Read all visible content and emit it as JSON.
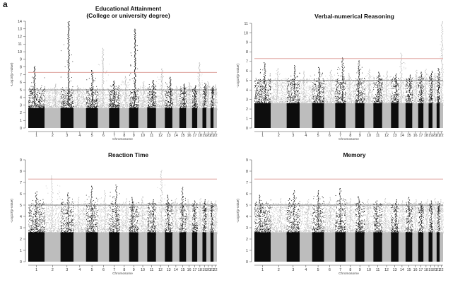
{
  "figure_label": "a",
  "colors": {
    "odd": "#0d0d0d",
    "even": "#bdbdbd",
    "suggestive_line": "#777777",
    "significance_line": "#d9958f"
  },
  "chart_data": [
    {
      "type": "scatter",
      "subtype": "manhattan",
      "title": "Educational Attainment",
      "subtitle": "(College or university degree)",
      "xlabel": "Chromosome",
      "ylabel": "-Log10(p-value)",
      "ylim": [
        0,
        14
      ],
      "yticks": [
        0,
        1,
        2,
        3,
        4,
        5,
        6,
        7,
        8,
        9,
        10,
        11,
        12,
        13,
        14
      ],
      "chromosome_labels": [
        "1",
        "2",
        "3",
        "4",
        "5",
        "6",
        "7",
        "8",
        "9",
        "10",
        "11",
        "12",
        "13",
        "14",
        "15",
        "16",
        "17",
        "18",
        "19",
        "20",
        "21",
        "22"
      ],
      "significance_threshold": 7.3,
      "suggestive_threshold": 5,
      "peak_values": [
        8.1,
        5.8,
        14,
        5.6,
        7.6,
        10.5,
        6.2,
        6.8,
        13,
        6.1,
        6.3,
        7.8,
        6.7,
        5.5,
        5.8,
        6.0,
        5.6,
        8.6,
        5.9,
        6.1,
        5.5,
        5.7
      ]
    },
    {
      "type": "scatter",
      "subtype": "manhattan",
      "title": "Verbal-numerical Reasoning",
      "subtitle": "",
      "xlabel": "Chromosome",
      "ylabel": "-Log10(p-value)",
      "ylim": [
        0,
        11
      ],
      "yticks": [
        0,
        1,
        2,
        3,
        4,
        5,
        6,
        7,
        8,
        9,
        10,
        11
      ],
      "chromosome_labels": [
        "1",
        "2",
        "3",
        "4",
        "5",
        "6",
        "7",
        "8",
        "9",
        "10",
        "11",
        "12",
        "13",
        "14",
        "15",
        "16",
        "17",
        "18",
        "19",
        "20",
        "21",
        "22"
      ],
      "significance_threshold": 7.3,
      "suggestive_threshold": 5,
      "peak_values": [
        6.9,
        6.3,
        6.6,
        6.0,
        6.4,
        6.1,
        7.4,
        5.8,
        7.1,
        6.2,
        5.9,
        6.0,
        5.7,
        7.9,
        5.6,
        6.1,
        5.9,
        6.2,
        6.0,
        5.8,
        6.3,
        11.2
      ]
    },
    {
      "type": "scatter",
      "subtype": "manhattan",
      "title": "Reaction Time",
      "subtitle": "",
      "xlabel": "Chromosome",
      "ylabel": "-Log10(p-value)",
      "ylim": [
        0,
        9
      ],
      "yticks": [
        0,
        1,
        2,
        3,
        4,
        5,
        6,
        7,
        8,
        9
      ],
      "chromosome_labels": [
        "1",
        "2",
        "3",
        "4",
        "5",
        "6",
        "7",
        "8",
        "9",
        "10",
        "11",
        "12",
        "13",
        "14",
        "15",
        "16",
        "17",
        "18",
        "19",
        "20",
        "21",
        "22"
      ],
      "significance_threshold": 7.3,
      "suggestive_threshold": 5,
      "peak_values": [
        6.2,
        7.6,
        6.1,
        5.7,
        6.7,
        6.3,
        6.8,
        5.6,
        5.7,
        5.8,
        5.5,
        8.1,
        5.9,
        5.6,
        6.6,
        5.5,
        5.4,
        5.6,
        5.5,
        5.4,
        5.3,
        5.4
      ]
    },
    {
      "type": "scatter",
      "subtype": "manhattan",
      "title": "Memory",
      "subtitle": "",
      "xlabel": "Chromosome",
      "ylabel": "-Log10(p-value)",
      "ylim": [
        0,
        9
      ],
      "yticks": [
        0,
        1,
        2,
        3,
        4,
        5,
        6,
        7,
        8,
        9
      ],
      "chromosome_labels": [
        "1",
        "2",
        "3",
        "4",
        "5",
        "6",
        "7",
        "8",
        "9",
        "10",
        "11",
        "12",
        "13",
        "14",
        "15",
        "16",
        "17",
        "18",
        "19",
        "20",
        "21",
        "22"
      ],
      "significance_threshold": 7.3,
      "suggestive_threshold": 5,
      "peak_values": [
        5.9,
        5.6,
        6.3,
        5.5,
        6.3,
        5.7,
        6.5,
        5.6,
        5.8,
        5.5,
        5.4,
        5.6,
        5.5,
        5.4,
        5.7,
        5.5,
        5.3,
        5.5,
        5.4,
        5.6,
        5.3,
        5.5
      ]
    }
  ]
}
